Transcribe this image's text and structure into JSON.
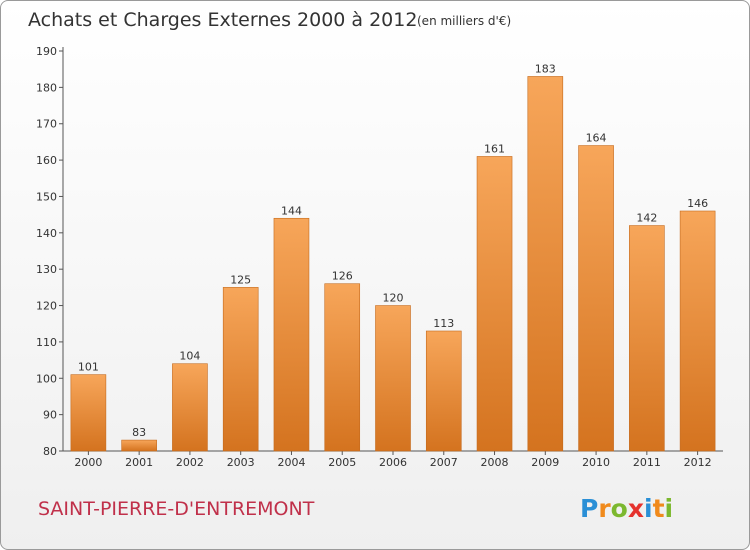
{
  "chart_data": {
    "type": "bar",
    "title": "Achats et Charges Externes 2000 à 2012",
    "subtitle": "(en milliers d'€)",
    "categories": [
      "2000",
      "2001",
      "2002",
      "2003",
      "2004",
      "2005",
      "2006",
      "2007",
      "2008",
      "2009",
      "2010",
      "2011",
      "2012"
    ],
    "values": [
      101,
      83,
      104,
      125,
      144,
      126,
      120,
      113,
      161,
      183,
      164,
      142,
      146
    ],
    "ylim": [
      80,
      190
    ],
    "yticks": [
      80,
      90,
      100,
      110,
      120,
      130,
      140,
      150,
      160,
      170,
      180,
      190
    ],
    "grid": false,
    "bar_color_top": "#f7a65a",
    "bar_color_bottom": "#d4731f"
  },
  "footer": {
    "commune": "SAINT-PIERRE-D'ENTREMONT",
    "logo": "Proxiti"
  }
}
